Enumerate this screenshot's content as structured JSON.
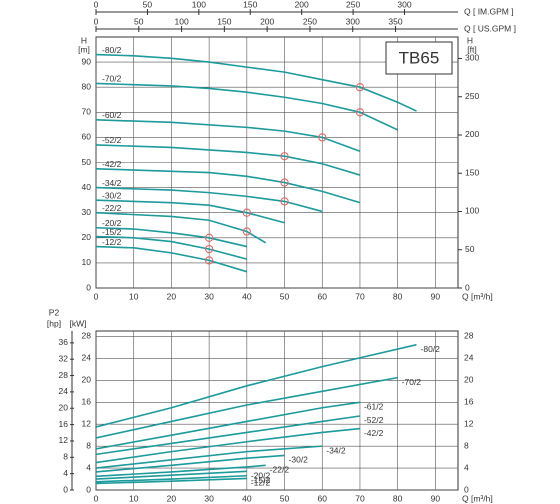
{
  "chart_data": [
    {
      "type": "line",
      "annotation": "TB65",
      "color": "#1c9a9c",
      "grid": true,
      "xlabel": "Q [m³/h]",
      "ylabel": "H",
      "yunit": "[m]",
      "y2label": "H",
      "y2unit": "[ft]",
      "xlim": [
        0,
        96
      ],
      "xticks": [
        0,
        10,
        20,
        30,
        40,
        50,
        60,
        70,
        80,
        90
      ],
      "ylim": [
        0,
        100
      ],
      "yticks": [
        0,
        10,
        20,
        30,
        40,
        50,
        60,
        70,
        80,
        90
      ],
      "y2lim": [
        0,
        328.1
      ],
      "y2ticks": [
        0,
        50,
        100,
        150,
        200,
        250,
        300
      ],
      "top_axes": [
        {
          "label": "Q [ IM.GPM ]",
          "xlim": [
            0,
            352
          ],
          "xticks": [
            0,
            50,
            100,
            150,
            200,
            250,
            300
          ]
        },
        {
          "label": "Q [ US.GPM ]",
          "xlim": [
            0,
            423
          ],
          "xticks": [
            0,
            50,
            100,
            150,
            200,
            250,
            300,
            350
          ]
        }
      ],
      "series": [
        {
          "name": "-80/2",
          "x": [
            0,
            10,
            20,
            30,
            40,
            50,
            60,
            70,
            80,
            85
          ],
          "values": [
            93,
            92.5,
            91.5,
            90,
            88,
            86,
            83,
            80,
            74,
            70.5
          ]
        },
        {
          "name": "-70/2",
          "x": [
            0,
            10,
            20,
            30,
            40,
            50,
            60,
            70,
            80
          ],
          "values": [
            81.5,
            81,
            80.5,
            79.5,
            78,
            76,
            73.5,
            70,
            63
          ]
        },
        {
          "name": "-60/2",
          "x": [
            0,
            20,
            40,
            50,
            60,
            70
          ],
          "values": [
            67,
            66,
            64,
            62.5,
            60,
            54.5
          ]
        },
        {
          "name": "-52/2",
          "x": [
            0,
            20,
            30,
            40,
            50,
            60,
            70
          ],
          "values": [
            57,
            56,
            55,
            54,
            52.5,
            49.5,
            45
          ]
        },
        {
          "name": "-42/2",
          "x": [
            0,
            20,
            30,
            40,
            50,
            60,
            70
          ],
          "values": [
            47.5,
            46.5,
            46,
            44.5,
            42,
            38.5,
            34
          ]
        },
        {
          "name": "-34/2",
          "x": [
            0,
            20,
            30,
            40,
            50,
            60
          ],
          "values": [
            40,
            39,
            38,
            36.5,
            34.5,
            30.5
          ]
        },
        {
          "name": "-30/2",
          "x": [
            0,
            20,
            30,
            40,
            50
          ],
          "values": [
            35,
            34,
            33,
            30,
            26
          ]
        },
        {
          "name": "-22/2",
          "x": [
            0,
            20,
            30,
            40,
            45
          ],
          "values": [
            30,
            28.5,
            27,
            22.5,
            18
          ]
        },
        {
          "name": "-20/2",
          "x": [
            0,
            10,
            20,
            30,
            40
          ],
          "values": [
            24,
            23.5,
            22,
            20,
            16.5
          ]
        },
        {
          "name": "-15/2",
          "x": [
            0,
            10,
            20,
            30,
            40
          ],
          "values": [
            20.5,
            20,
            18.5,
            15.5,
            11.5
          ]
        },
        {
          "name": "-12/2",
          "x": [
            0,
            10,
            20,
            30,
            40
          ],
          "values": [
            16.5,
            16,
            14,
            11,
            6.5
          ]
        }
      ],
      "rated_points": {
        "color": "#d96a6a",
        "x": [
          70,
          70,
          60,
          50,
          50,
          50,
          40,
          40,
          30,
          30,
          30
        ],
        "values": [
          80,
          70,
          60,
          52.5,
          42,
          34.5,
          30,
          22.5,
          20,
          15.5,
          11
        ]
      }
    },
    {
      "type": "line",
      "color": "#1c9a9c",
      "grid": true,
      "xlabel": "Q [m³/h]",
      "ylabel": "P2",
      "yunit": "[kW]",
      "y2unit": "[hp]",
      "xlim": [
        0,
        96
      ],
      "xticks": [
        0,
        10,
        20,
        30,
        40,
        50,
        60,
        70,
        80,
        90
      ],
      "ylim": [
        0,
        29
      ],
      "yticks": [
        0,
        4,
        8,
        12,
        16,
        20,
        24,
        28
      ],
      "y2lim": [
        0,
        38.9
      ],
      "y2ticks": [
        0,
        4,
        8,
        12,
        16,
        20,
        24,
        28,
        32,
        36
      ],
      "series": [
        {
          "name": "-80/2",
          "x": [
            0,
            20,
            40,
            60,
            85
          ],
          "values": [
            11.5,
            15,
            19,
            22.5,
            26.5
          ]
        },
        {
          "name": "-70/2",
          "x": [
            0,
            20,
            40,
            60,
            80
          ],
          "values": [
            9.5,
            12.5,
            15.5,
            18,
            20.5
          ]
        },
        {
          "name": "-61/2",
          "x": [
            0,
            20,
            40,
            60,
            70
          ],
          "values": [
            7.5,
            10,
            12.5,
            15,
            16
          ]
        },
        {
          "name": "-52/2",
          "x": [
            0,
            20,
            40,
            60,
            70
          ],
          "values": [
            6.5,
            8.5,
            10.5,
            12.5,
            13.5
          ]
        },
        {
          "name": "-42/2",
          "x": [
            0,
            20,
            40,
            60,
            70
          ],
          "values": [
            5,
            7,
            8.8,
            10.5,
            11.2
          ]
        },
        {
          "name": "-34/2",
          "x": [
            0,
            20,
            40,
            60
          ],
          "values": [
            4,
            5.5,
            7,
            8
          ]
        },
        {
          "name": "-30/2",
          "x": [
            0,
            20,
            40,
            50
          ],
          "values": [
            3.3,
            4.5,
            5.8,
            6.3
          ]
        },
        {
          "name": "-22/2",
          "x": [
            0,
            20,
            40,
            45
          ],
          "values": [
            2.5,
            3.3,
            4.2,
            4.5
          ]
        },
        {
          "name": "-20/2",
          "x": [
            0,
            20,
            40
          ],
          "values": [
            2,
            2.7,
            3.4
          ]
        },
        {
          "name": "-15/2",
          "x": [
            0,
            20,
            40
          ],
          "values": [
            1.5,
            2,
            2.6
          ]
        },
        {
          "name": "-12/2",
          "x": [
            0,
            20,
            40
          ],
          "values": [
            1.2,
            1.6,
            2.1
          ]
        }
      ]
    }
  ]
}
